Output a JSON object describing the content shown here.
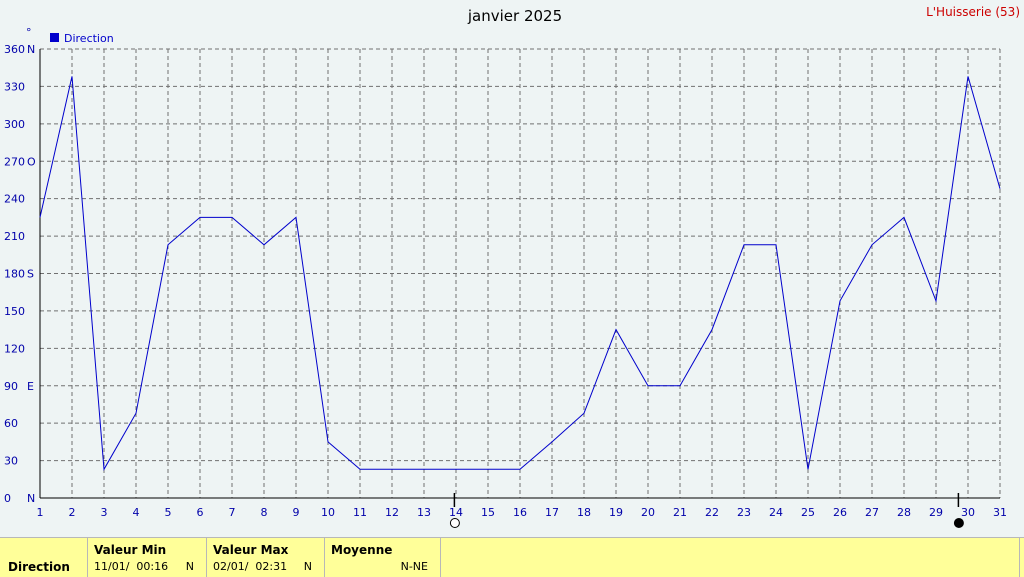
{
  "chart_data": {
    "type": "line",
    "title": "janvier 2025",
    "station": "L'Huisserie (53)",
    "unit_label": "°",
    "legend": [
      {
        "name": "Direction",
        "color": "#0000cc"
      }
    ],
    "legend_position": "top-left",
    "grid": true,
    "xlim": [
      1,
      31
    ],
    "ylim": [
      0,
      360
    ],
    "x_ticks": [
      "1",
      "2",
      "3",
      "4",
      "5",
      "6",
      "7",
      "8",
      "9",
      "10",
      "11",
      "12",
      "13",
      "14",
      "15",
      "16",
      "17",
      "18",
      "19",
      "20",
      "21",
      "22",
      "23",
      "24",
      "25",
      "26",
      "27",
      "28",
      "29",
      "30",
      "31"
    ],
    "y_ticks": [
      {
        "value": 0,
        "label": "0",
        "dir": "N"
      },
      {
        "value": 30,
        "label": "30",
        "dir": ""
      },
      {
        "value": 60,
        "label": "60",
        "dir": ""
      },
      {
        "value": 90,
        "label": "90",
        "dir": "E"
      },
      {
        "value": 120,
        "label": "120",
        "dir": ""
      },
      {
        "value": 150,
        "label": "150",
        "dir": ""
      },
      {
        "value": 180,
        "label": "180",
        "dir": "S"
      },
      {
        "value": 210,
        "label": "210",
        "dir": ""
      },
      {
        "value": 240,
        "label": "240",
        "dir": ""
      },
      {
        "value": 270,
        "label": "270",
        "dir": "O"
      },
      {
        "value": 300,
        "label": "300",
        "dir": ""
      },
      {
        "value": 330,
        "label": "330",
        "dir": ""
      },
      {
        "value": 360,
        "label": "360",
        "dir": "N"
      }
    ],
    "series": [
      {
        "name": "Direction",
        "color": "#0000cc",
        "x": [
          1,
          2,
          3,
          4,
          5,
          6,
          7,
          8,
          9,
          10,
          11,
          12,
          13,
          14,
          15,
          16,
          17,
          18,
          19,
          20,
          21,
          22,
          23,
          24,
          25,
          26,
          27,
          28,
          29,
          30,
          31
        ],
        "values": [
          225,
          338,
          23,
          68,
          203,
          225,
          225,
          203,
          225,
          45,
          23,
          23,
          23,
          23,
          23,
          23,
          45,
          68,
          135,
          90,
          90,
          135,
          203,
          203,
          23,
          158,
          203,
          225,
          158,
          338,
          248
        ]
      }
    ],
    "moon_phases": [
      {
        "day": 13.95,
        "phase": "full"
      },
      {
        "day": 29.7,
        "phase": "new"
      }
    ]
  },
  "stats": {
    "row_label": "Direction",
    "min": {
      "header": "Valeur Min",
      "date": "11/01/",
      "time": "00:16",
      "value": "N"
    },
    "max": {
      "header": "Valeur Max",
      "date": "02/01/",
      "time": "02:31",
      "value": "N"
    },
    "avg": {
      "header": "Moyenne",
      "value": "N-NE"
    }
  }
}
